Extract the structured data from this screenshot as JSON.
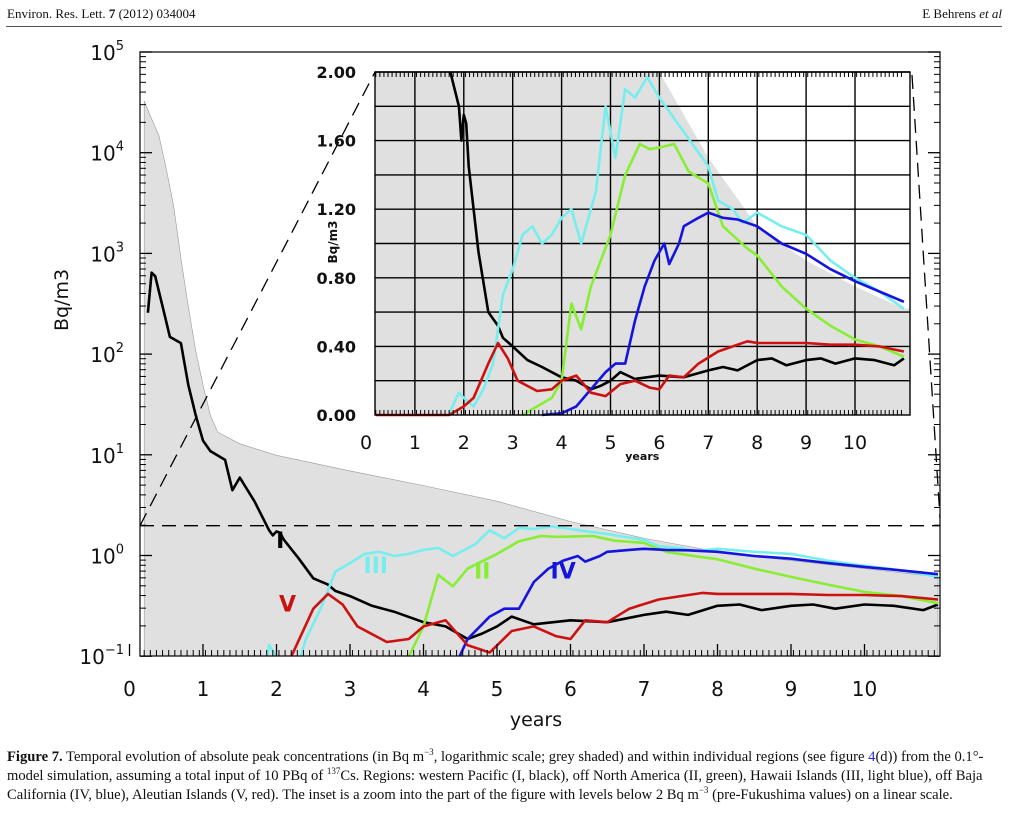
{
  "header": {
    "journal": "Environ. Res. Lett.",
    "volume": "7",
    "year_article": "(2012) 034004",
    "authors": "E Behrens",
    "etal": "et al"
  },
  "caption": {
    "label": "Figure 7.",
    "parts": [
      " Temporal evolution of absolute peak concentrations (in Bq m",
      "−3",
      ", logarithmic scale; grey shaded) and within individual regions (see figure ",
      "4",
      "(d)) from the 0.1°-model simulation, assuming a total input of 10 PBq of ",
      "137",
      "Cs. Regions: western Pacific (I, black), off North America (II, green), Hawaii Islands (III, light blue), off Baja California (IV, blue), Aleutian Islands (V, red). The inset is a zoom into the part of the figure with levels below 2 Bq m",
      "−3",
      " (pre-Fukushima values) on a linear scale."
    ]
  },
  "chart_data": [
    {
      "type": "line",
      "scale": "log",
      "title": "",
      "xlabel": "years",
      "ylabel": "Bq/m3",
      "xlim": [
        0.15,
        11
      ],
      "ylim": [
        0.1,
        100000
      ],
      "xticks": [
        "0",
        "1",
        "2",
        "3",
        "4",
        "5",
        "6",
        "7",
        "8",
        "9",
        "10"
      ],
      "yticks": [
        {
          "base": "10",
          "exp": "5"
        },
        {
          "base": "10",
          "exp": "4"
        },
        {
          "base": "10",
          "exp": "3"
        },
        {
          "base": "10",
          "exp": "2"
        },
        {
          "base": "10",
          "exp": "1"
        },
        {
          "base": "10",
          "exp": "0"
        },
        {
          "base": "10",
          "exp": "−1"
        }
      ],
      "reference_level": 2,
      "envelope": {
        "name": "absolute peak concentration (grey shaded)",
        "color": "#e0e0e0",
        "x": [
          0.2,
          0.3,
          0.4,
          0.5,
          0.6,
          0.7,
          0.8,
          0.9,
          1.0,
          1.1,
          1.2,
          1.5,
          2,
          3,
          4,
          5,
          6,
          7,
          8,
          9,
          10,
          11
        ],
        "y": [
          33000,
          22000,
          15000,
          7000,
          3000,
          900,
          300,
          110,
          50,
          25,
          17,
          13,
          10,
          7,
          5,
          3.5,
          2.2,
          1.5,
          1.1,
          0.9,
          0.75,
          0.62
        ]
      },
      "series_labels": [
        {
          "text": "I",
          "series": "I",
          "x": 2.05,
          "y": 1.2
        },
        {
          "text": "III",
          "series": "III",
          "x": 3.35,
          "y": 0.68
        },
        {
          "text": "II",
          "series": "II",
          "x": 4.8,
          "y": 0.6
        },
        {
          "text": "IV",
          "series": "IV",
          "x": 5.9,
          "y": 0.6
        },
        {
          "text": "V",
          "series": "V",
          "x": 2.15,
          "y": 0.28
        }
      ]
    },
    {
      "type": "line",
      "scale": "linear",
      "title": "inset",
      "xlabel": "years",
      "ylabel": "Bq/m3",
      "xlim": [
        0.18,
        11
      ],
      "ylim": [
        0,
        2
      ],
      "xticks": [
        "0",
        "1",
        "2",
        "3",
        "4",
        "5",
        "6",
        "7",
        "8",
        "9",
        "10"
      ],
      "yticks": [
        "0.00",
        "0.40",
        "0.80",
        "1.20",
        "1.60",
        "2.00"
      ]
    }
  ],
  "series": [
    {
      "id": "I",
      "name": "western Pacific",
      "color": "#000000",
      "x": [
        0.25,
        0.3,
        0.35,
        0.45,
        0.55,
        0.7,
        0.8,
        0.9,
        1.0,
        1.1,
        1.3,
        1.4,
        1.5,
        1.7,
        1.9,
        1.95,
        2.0,
        2.05,
        2.1,
        2.3,
        2.5,
        2.7,
        2.8,
        3.0,
        3.3,
        3.6,
        4.0,
        4.3,
        4.6,
        4.8,
        5.0,
        5.2,
        5.5,
        6.0,
        6.5,
        7.0,
        7.3,
        7.6,
        8.0,
        8.3,
        8.6,
        9.0,
        9.3,
        9.6,
        10.0,
        10.4,
        10.8,
        11.0
      ],
      "y": [
        260,
        650,
        600,
        300,
        150,
        130,
        50,
        25,
        14,
        11,
        9,
        4.5,
        6,
        3.5,
        1.8,
        1.6,
        1.75,
        1.7,
        1.45,
        0.95,
        0.6,
        0.52,
        0.45,
        0.4,
        0.32,
        0.28,
        0.22,
        0.2,
        0.15,
        0.17,
        0.2,
        0.25,
        0.21,
        0.23,
        0.22,
        0.26,
        0.28,
        0.26,
        0.32,
        0.33,
        0.29,
        0.32,
        0.33,
        0.3,
        0.33,
        0.32,
        0.29,
        0.33
      ]
    },
    {
      "id": "II",
      "name": "off North America",
      "color": "#88ee33",
      "x": [
        3.2,
        3.5,
        3.8,
        4.0,
        4.2,
        4.4,
        4.6,
        5.0,
        5.3,
        5.6,
        5.8,
        6.0,
        6.3,
        6.6,
        7.0,
        7.3,
        7.8,
        8.0,
        8.5,
        9.0,
        9.5,
        10.0,
        10.5,
        11.0
      ],
      "y": [
        0,
        0.05,
        0.1,
        0.2,
        0.65,
        0.5,
        0.75,
        1.05,
        1.4,
        1.58,
        1.55,
        1.56,
        1.58,
        1.42,
        1.35,
        1.1,
        0.97,
        0.93,
        0.75,
        0.62,
        0.52,
        0.44,
        0.4,
        0.34
      ]
    },
    {
      "id": "III",
      "name": "Hawaii Islands",
      "color": "#77eeee",
      "x": [
        1.7,
        1.9,
        2.0,
        2.2,
        2.4,
        2.6,
        2.8,
        3.0,
        3.2,
        3.4,
        3.6,
        3.8,
        4.0,
        4.2,
        4.4,
        4.7,
        4.9,
        5.1,
        5.3,
        5.5,
        5.75,
        6.0,
        6.5,
        7.0,
        7.2,
        7.5,
        7.7,
        8.0,
        8.5,
        9.0,
        9.5,
        10.0,
        10.5,
        11.0
      ],
      "y": [
        0.01,
        0.13,
        0.1,
        0.05,
        0.15,
        0.3,
        0.7,
        0.85,
        1.05,
        1.1,
        1.0,
        1.05,
        1.15,
        1.2,
        1.0,
        1.3,
        1.8,
        1.5,
        1.9,
        1.85,
        1.97,
        1.85,
        1.65,
        1.45,
        1.25,
        1.2,
        1.12,
        1.18,
        1.1,
        1.05,
        0.9,
        0.8,
        0.72,
        0.62
      ]
    },
    {
      "id": "IV",
      "name": "off Baja California",
      "color": "#1414dd",
      "x": [
        3.6,
        4.0,
        4.3,
        4.6,
        4.9,
        5.1,
        5.3,
        5.5,
        5.7,
        5.9,
        6.1,
        6.2,
        6.4,
        6.5,
        6.8,
        7.0,
        7.3,
        7.6,
        8.0,
        8.5,
        9.0,
        9.5,
        10.0,
        10.5,
        11.0
      ],
      "y": [
        0,
        0.01,
        0.05,
        0.15,
        0.25,
        0.3,
        0.3,
        0.55,
        0.75,
        0.9,
        1.0,
        0.88,
        1.0,
        1.1,
        1.15,
        1.18,
        1.15,
        1.14,
        1.1,
        1.0,
        0.94,
        0.85,
        0.78,
        0.72,
        0.66
      ]
    },
    {
      "id": "V",
      "name": "Aleutian Islands",
      "color": "#cc1111",
      "x": [
        0.2,
        1.7,
        2.0,
        2.2,
        2.5,
        2.7,
        2.9,
        3.1,
        3.5,
        3.8,
        4.0,
        4.3,
        4.6,
        4.9,
        5.2,
        5.5,
        5.8,
        6.0,
        6.2,
        6.5,
        6.8,
        7.2,
        7.5,
        7.8,
        8.0,
        8.5,
        9.0,
        9.5,
        10.0,
        10.5,
        11.0
      ],
      "y": [
        0,
        0,
        0.05,
        0.1,
        0.3,
        0.42,
        0.33,
        0.2,
        0.14,
        0.15,
        0.2,
        0.23,
        0.13,
        0.11,
        0.18,
        0.2,
        0.16,
        0.15,
        0.23,
        0.22,
        0.3,
        0.37,
        0.4,
        0.43,
        0.42,
        0.42,
        0.42,
        0.41,
        0.41,
        0.4,
        0.37
      ]
    }
  ]
}
